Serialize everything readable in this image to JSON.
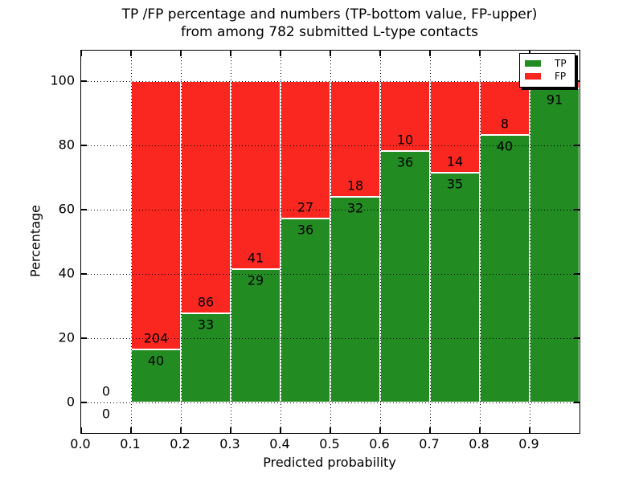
{
  "chart_data": {
    "type": "bar",
    "stacked": true,
    "title": "TP /FP percentage and numbers (TP-bottom value, FP-upper) from among 782 submitted L-type contacts",
    "title_line1": "TP /FP percentage and numbers (TP-bottom value, FP-upper)",
    "title_line2": "from among 782 submitted L-type contacts",
    "xlabel": "Predicted probability",
    "ylabel": "Percentage",
    "xlim": [
      0.0,
      1.0
    ],
    "ylim": [
      -9.5,
      109.5
    ],
    "x_tick_values": [
      0.0,
      0.1,
      0.2,
      0.3,
      0.4,
      0.5,
      0.6,
      0.7,
      0.8,
      0.9
    ],
    "x_tick_labels": [
      "0.0",
      "0.1",
      "0.2",
      "0.3",
      "0.4",
      "0.5",
      "0.6",
      "0.7",
      "0.8",
      "0.9"
    ],
    "y_tick_values": [
      0,
      20,
      40,
      60,
      80,
      100
    ],
    "y_tick_labels": [
      "0",
      "20",
      "40",
      "60",
      "80",
      "100"
    ],
    "grid": "dotted, drawn over bars",
    "total_submitted": 782,
    "series": [
      {
        "name": "TP",
        "color": "#228b22"
      },
      {
        "name": "FP",
        "color": "#f92720"
      }
    ],
    "bins": [
      {
        "range": [
          0.0,
          0.1
        ],
        "tp": 0,
        "fp": 0,
        "tp_percent": 0.0
      },
      {
        "range": [
          0.1,
          0.2
        ],
        "tp": 40,
        "fp": 204,
        "tp_percent": 16.4
      },
      {
        "range": [
          0.2,
          0.3
        ],
        "tp": 33,
        "fp": 86,
        "tp_percent": 27.7
      },
      {
        "range": [
          0.3,
          0.4
        ],
        "tp": 29,
        "fp": 41,
        "tp_percent": 41.4
      },
      {
        "range": [
          0.4,
          0.5
        ],
        "tp": 36,
        "fp": 27,
        "tp_percent": 57.1
      },
      {
        "range": [
          0.5,
          0.6
        ],
        "tp": 32,
        "fp": 18,
        "tp_percent": 64.0
      },
      {
        "range": [
          0.6,
          0.7
        ],
        "tp": 36,
        "fp": 10,
        "tp_percent": 78.3
      },
      {
        "range": [
          0.7,
          0.8
        ],
        "tp": 35,
        "fp": 14,
        "tp_percent": 71.4
      },
      {
        "range": [
          0.8,
          0.9
        ],
        "tp": 40,
        "fp": 8,
        "tp_percent": 83.3
      },
      {
        "range": [
          0.9,
          1.0
        ],
        "tp": 91,
        "fp": 2,
        "tp_percent": 97.8
      }
    ],
    "legend": {
      "position": "upper right",
      "entries": [
        {
          "label": "TP",
          "color": "#228b22"
        },
        {
          "label": "FP",
          "color": "#f92720"
        }
      ]
    }
  }
}
